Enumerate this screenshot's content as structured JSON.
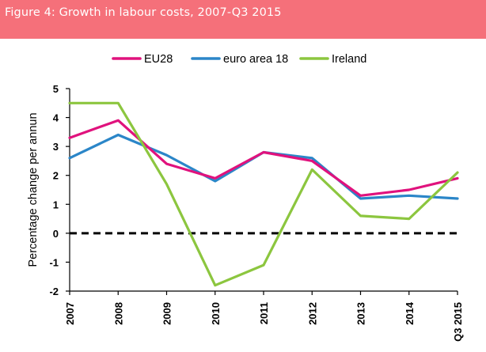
{
  "figure": {
    "title": "Figure 4: Growth in labour costs, 2007-Q3 2015"
  },
  "chart_data": {
    "type": "line",
    "title": "",
    "xlabel": "",
    "ylabel": "Percentage change per annun",
    "categories": [
      "2007",
      "2008",
      "2009",
      "2010",
      "2011",
      "2012",
      "2013",
      "2014",
      "Q3 2015"
    ],
    "ylim": [
      -2,
      5
    ],
    "yticks": [
      5,
      4,
      3,
      2,
      1,
      0,
      -1,
      -2
    ],
    "zero_line": "dashed",
    "grid": false,
    "legend_position": "top",
    "series": [
      {
        "name": "EU28",
        "color": "#e0127d",
        "values": [
          3.3,
          3.9,
          2.4,
          1.9,
          2.8,
          2.5,
          1.3,
          1.5,
          1.9
        ]
      },
      {
        "name": "euro area 18",
        "color": "#2b86c8",
        "values": [
          2.6,
          3.4,
          2.7,
          1.8,
          2.8,
          2.6,
          1.2,
          1.3,
          1.2
        ]
      },
      {
        "name": "Ireland",
        "color": "#8cc63f",
        "values": [
          4.5,
          4.5,
          1.7,
          -1.8,
          -1.1,
          2.2,
          0.6,
          0.5,
          2.1
        ]
      }
    ]
  },
  "colors": {
    "header_bg": "#f5707a",
    "axis": "#000000"
  }
}
